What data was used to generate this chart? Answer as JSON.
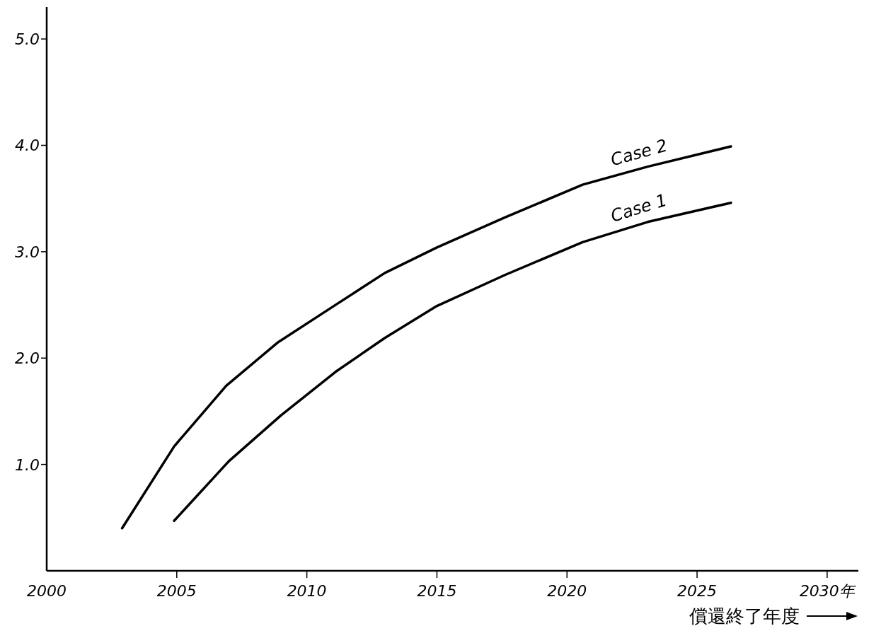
{
  "chart_data": {
    "type": "line",
    "xlabel": "償還終了年度",
    "xlim": [
      2000,
      2031.2
    ],
    "ylim": [
      0,
      5.3
    ],
    "xticks": [
      2000,
      2005,
      2010,
      2015,
      2020,
      2025,
      {
        "value": 2030,
        "label": "2030年"
      }
    ],
    "yticks": [
      {
        "value": 1,
        "label": "1.0"
      },
      {
        "value": 2,
        "label": "2.0"
      },
      {
        "value": 3,
        "label": "3.0"
      },
      {
        "value": 4,
        "label": "4.0"
      },
      {
        "value": 5,
        "label": "5.0"
      }
    ],
    "grid": false,
    "legend": false,
    "marker": "none",
    "line_style": "solid",
    "series": [
      {
        "name": "Case 2",
        "color": "#000000",
        "x": [
          2002.9,
          2004.9,
          2006.9,
          2008.9,
          2011.1,
          2013.0,
          2015.0,
          2017.6,
          2020.6,
          2023.1,
          2026.3
        ],
        "values": [
          0.4,
          1.17,
          1.74,
          2.15,
          2.5,
          2.8,
          3.04,
          3.32,
          3.63,
          3.8,
          3.99
        ]
      },
      {
        "name": "Case 1",
        "color": "#000000",
        "x": [
          2004.9,
          2007.0,
          2009.0,
          2011.1,
          2013.0,
          2015.0,
          2017.6,
          2020.6,
          2023.1,
          2026.3
        ],
        "values": [
          0.47,
          1.03,
          1.46,
          1.87,
          2.19,
          2.49,
          2.78,
          3.09,
          3.28,
          3.46
        ]
      }
    ]
  }
}
